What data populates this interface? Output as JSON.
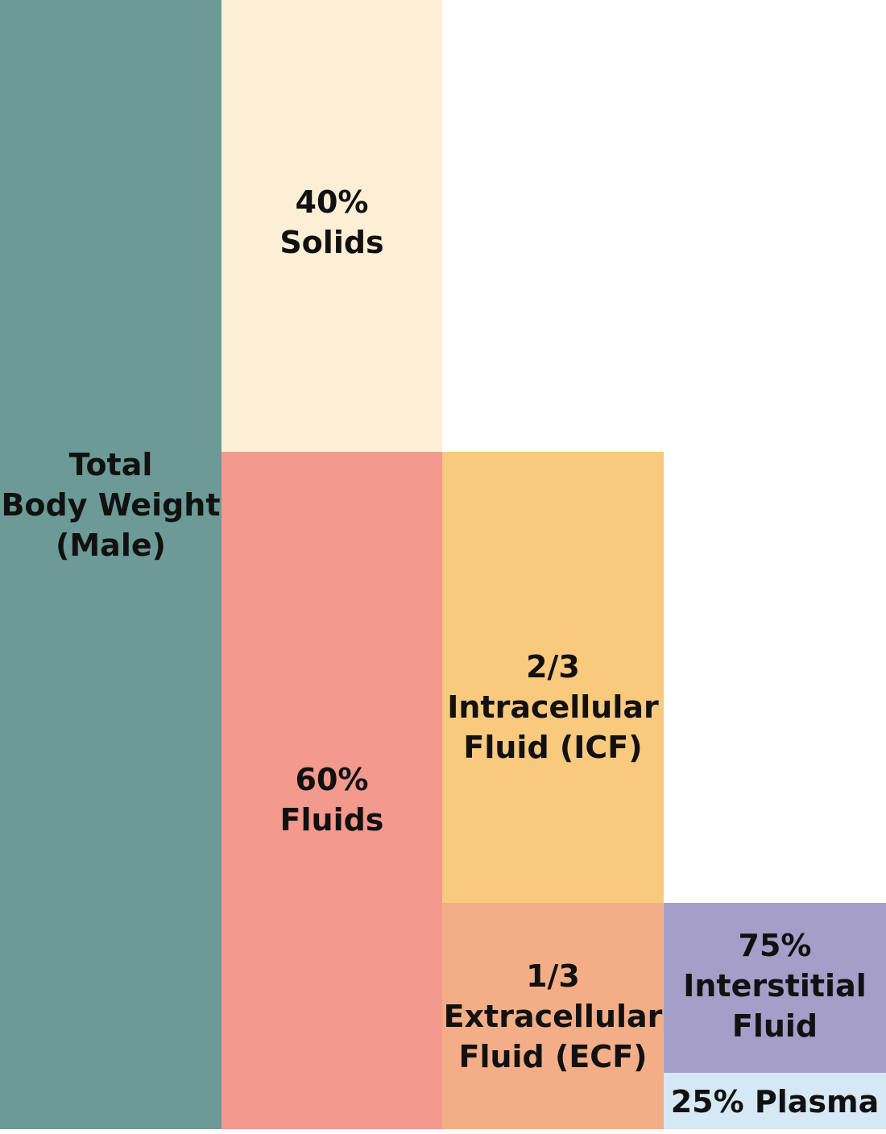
{
  "diagram": {
    "total": {
      "line1": "Total",
      "line2": "Body Weight",
      "line3": "(Male)",
      "color": "#6c9a97"
    },
    "solids": {
      "line1": "40%",
      "line2": "Solids",
      "color": "#fdefd6"
    },
    "fluids": {
      "line1": "60%",
      "line2": "Fluids",
      "color": "#f3998d"
    },
    "icf": {
      "line1": "2/3",
      "line2": "Intracellular",
      "line3": "Fluid (ICF)",
      "color": "#f9c97e"
    },
    "ecf": {
      "line1": "1/3",
      "line2": "Extracellular",
      "line3": "Fluid (ECF)",
      "color": "#f4ae87"
    },
    "interstitial": {
      "line1": "75%",
      "line2": "Interstitial",
      "line3": "Fluid",
      "color": "#a49ec9"
    },
    "plasma": {
      "line1": "25% Plasma",
      "color": "#d6e8f5"
    }
  }
}
